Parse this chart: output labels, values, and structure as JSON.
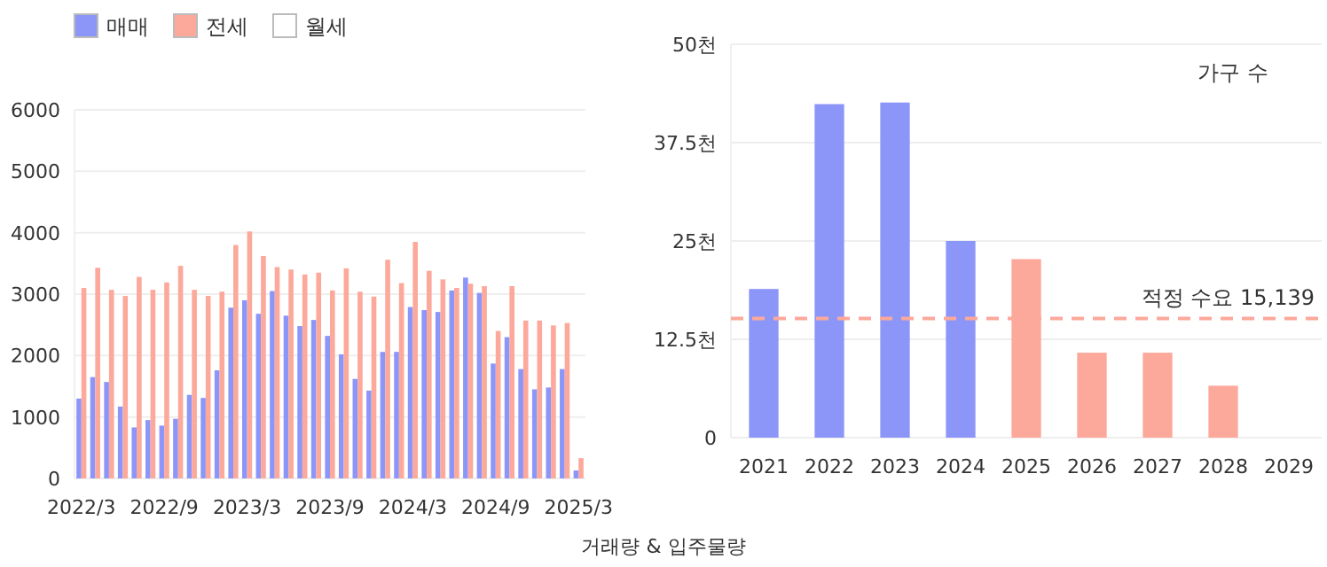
{
  "chart_data": [
    {
      "type": "bar",
      "categories": [
        "2022/3",
        null,
        null,
        null,
        null,
        null,
        "2022/9",
        null,
        null,
        null,
        null,
        null,
        "2023/3",
        null,
        null,
        null,
        null,
        null,
        "2023/9",
        null,
        null,
        null,
        null,
        null,
        "2024/3",
        null,
        null,
        null,
        null,
        null,
        "2024/9",
        null,
        null,
        null,
        null,
        null,
        "2025/3"
      ],
      "series": [
        {
          "name": "매매",
          "color": "#8c96f8",
          "values": [
            1300,
            1650,
            1570,
            1170,
            830,
            950,
            860,
            970,
            1360,
            1310,
            1760,
            2780,
            2900,
            2680,
            3050,
            2650,
            2480,
            2580,
            2320,
            2020,
            1620,
            1430,
            2060,
            2060,
            2790,
            2740,
            2710,
            3060,
            3270,
            3020,
            1870,
            2300,
            1780,
            1450,
            1480,
            1780,
            130
          ]
        },
        {
          "name": "전세",
          "color": "#fca89a",
          "values": [
            3100,
            3430,
            3070,
            2970,
            3280,
            3070,
            3190,
            3460,
            3070,
            2970,
            3040,
            3800,
            4020,
            3620,
            3440,
            3400,
            3320,
            3350,
            3060,
            3420,
            3040,
            2960,
            3560,
            3180,
            3850,
            3380,
            3240,
            3100,
            3170,
            3130,
            2400,
            3130,
            2570,
            2570,
            2490,
            2530,
            330
          ]
        },
        {
          "name": "월세",
          "color": "#ffffff",
          "values": [
            null,
            null,
            null,
            null,
            null,
            null,
            null,
            null,
            null,
            null,
            null,
            null,
            null,
            null,
            null,
            null,
            null,
            null,
            null,
            null,
            null,
            null,
            null,
            null,
            null,
            null,
            null,
            null,
            null,
            null,
            null,
            null,
            null,
            null,
            null,
            null,
            null
          ]
        }
      ],
      "ylim": [
        0,
        6000
      ],
      "yticks": [
        0,
        1000,
        2000,
        3000,
        4000,
        5000,
        6000
      ],
      "grid": "y",
      "legend": "top left"
    },
    {
      "type": "bar",
      "categories": [
        "2021",
        "2022",
        "2023",
        "2024",
        "2025",
        "2026",
        "2027",
        "2028",
        "2029"
      ],
      "values": [
        18.9,
        42.4,
        42.6,
        25.0,
        22.7,
        10.8,
        10.8,
        6.6,
        null
      ],
      "colors": [
        "#8c96f8",
        "#8c96f8",
        "#8c96f8",
        "#8c96f8",
        "#fca89a",
        "#fca89a",
        "#fca89a",
        "#fca89a",
        null
      ],
      "ylim": [
        0,
        50
      ],
      "yticks": [
        0,
        {
          "value": 12.5,
          "label": "12.5천"
        },
        {
          "value": 25,
          "label": "25천"
        },
        {
          "value": 37.5,
          "label": "37.5천"
        },
        {
          "value": 50,
          "label": "50천"
        }
      ],
      "grid": "y",
      "ref_lines": [
        {
          "axis": "y",
          "value": 15.139,
          "label": "적정 수요 15,139",
          "color": "#fca89a",
          "line_style": "dashed"
        }
      ],
      "annotations": [
        "가구 수",
        "거래량 & 입주물량"
      ]
    }
  ]
}
